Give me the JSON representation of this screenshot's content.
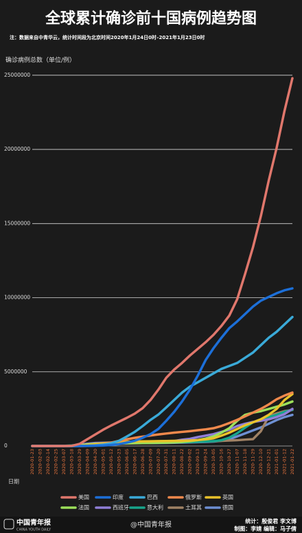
{
  "chart_data": {
    "type": "line",
    "title": "全球累计确诊前十国病例趋势图",
    "subtitle": "注：数据来自中青华云，统计时间段为北京时间2020年1月24日0时–2021年1月23日0时",
    "y_label": "确诊病例总数（单位/例）",
    "x_label": "日期",
    "categories": [
      "2020-01-23",
      "2020-02-03",
      "2020-02-14",
      "2020-02-25",
      "2020-03-07",
      "2020-03-18",
      "2020-03-29",
      "2020-04-09",
      "2020-04-20",
      "2020-05-01",
      "2020-05-12",
      "2020-05-23",
      "2020-06-05",
      "2020-06-17",
      "2020-06-28",
      "2020-07-09",
      "2020-07-20",
      "2020-07-31",
      "2020-08-11",
      "2020-08-22",
      "2020-09-02",
      "2020-09-13",
      "2020-09-24",
      "2020-10-05",
      "2020-10-16",
      "2020-10-27",
      "2020-11-07",
      "2020-11-18",
      "2020-11-29",
      "2020-12-10",
      "2020-12-21",
      "2021-01-01",
      "2021-01-12",
      "2021-01-22"
    ],
    "series": [
      {
        "name": "美国",
        "color": "#e0776c",
        "values": [
          0,
          10,
          15,
          60,
          400,
          9000,
          140000,
          460000,
          780000,
          1100000,
          1380000,
          1640000,
          1900000,
          2180000,
          2550000,
          3100000,
          3800000,
          4600000,
          5150000,
          5600000,
          6100000,
          6550000,
          7000000,
          7500000,
          8100000,
          8800000,
          9900000,
          11600000,
          13400000,
          15500000,
          17900000,
          20100000,
          22600000,
          24800000
        ]
      },
      {
        "name": "印度",
        "color": "#1c6fd8",
        "values": [
          0,
          0,
          3,
          3,
          34,
          150,
          1000,
          6000,
          18000,
          35000,
          70000,
          130000,
          230000,
          350000,
          550000,
          800000,
          1150000,
          1700000,
          2300000,
          3000000,
          3800000,
          4750000,
          5800000,
          6600000,
          7300000,
          7950000,
          8400000,
          8900000,
          9400000,
          9800000,
          10050000,
          10300000,
          10500000,
          10630000
        ]
      },
      {
        "name": "巴西",
        "color": "#3aaad8",
        "values": [
          0,
          0,
          0,
          1,
          19,
          290,
          4300,
          18000,
          40000,
          90000,
          180000,
          350000,
          640000,
          950000,
          1340000,
          1760000,
          2120000,
          2600000,
          3100000,
          3600000,
          4000000,
          4300000,
          4600000,
          4900000,
          5200000,
          5400000,
          5600000,
          5950000,
          6300000,
          6800000,
          7300000,
          7700000,
          8200000,
          8700000
        ]
      },
      {
        "name": "俄罗斯",
        "color": "#f0894c",
        "values": [
          0,
          2,
          2,
          2,
          10,
          150,
          1500,
          10000,
          50000,
          110000,
          230000,
          340000,
          450000,
          550000,
          630000,
          710000,
          780000,
          840000,
          900000,
          950000,
          1000000,
          1060000,
          1120000,
          1200000,
          1350000,
          1550000,
          1760000,
          2000000,
          2250000,
          2500000,
          2800000,
          3150000,
          3400000,
          3600000
        ]
      },
      {
        "name": "英国",
        "color": "#e9c22b",
        "values": [
          0,
          2,
          9,
          13,
          200,
          2600,
          20000,
          65000,
          120000,
          180000,
          225000,
          260000,
          285000,
          300000,
          312000,
          320000,
          328000,
          335000,
          345000,
          355000,
          370000,
          400000,
          450000,
          520000,
          700000,
          900000,
          1150000,
          1400000,
          1600000,
          1800000,
          2100000,
          2500000,
          3100000,
          3500000
        ]
      },
      {
        "name": "法国",
        "color": "#9ce05a",
        "values": [
          3,
          6,
          11,
          12,
          950,
          9000,
          40000,
          110000,
          150000,
          165000,
          175000,
          180000,
          190000,
          195000,
          200000,
          207000,
          212000,
          225000,
          245000,
          270000,
          320000,
          400000,
          500000,
          650000,
          900000,
          1200000,
          1700000,
          2100000,
          2250000,
          2350000,
          2500000,
          2650000,
          2800000,
          3000000
        ]
      },
      {
        "name": "西班牙",
        "color": "#907fd8",
        "values": [
          0,
          1,
          2,
          6,
          500,
          14000,
          80000,
          150000,
          200000,
          215000,
          228000,
          235000,
          240000,
          245000,
          249000,
          253000,
          260000,
          290000,
          330000,
          420000,
          480000,
          600000,
          700000,
          800000,
          950000,
          1100000,
          1350000,
          1500000,
          1620000,
          1700000,
          1800000,
          1950000,
          2150000,
          2500000
        ]
      },
      {
        "name": "意大利",
        "color": "#17a58b",
        "values": [
          0,
          2,
          3,
          320,
          4600,
          36000,
          98000,
          143000,
          182000,
          207000,
          220000,
          229000,
          234000,
          238000,
          240000,
          242000,
          244000,
          247000,
          251000,
          259000,
          270000,
          290000,
          305000,
          330000,
          390000,
          560000,
          860000,
          1240000,
          1600000,
          1770000,
          1950000,
          2100000,
          2300000,
          2440000
        ]
      },
      {
        "name": "土耳其",
        "color": "#a08265",
        "values": [
          0,
          0,
          0,
          0,
          0,
          47,
          10000,
          42000,
          90000,
          120000,
          140000,
          156000,
          170000,
          185000,
          197000,
          208000,
          220000,
          230000,
          243000,
          260000,
          272000,
          290000,
          312000,
          325000,
          345000,
          370000,
          390000,
          430000,
          460000,
          1000000,
          2000000,
          2200000,
          2350000,
          2430000
        ]
      },
      {
        "name": "德国",
        "color": "#6d8fd2",
        "values": [
          0,
          12,
          16,
          18,
          800,
          9000,
          58000,
          113000,
          148000,
          163000,
          172000,
          179000,
          185000,
          189000,
          195000,
          199000,
          203000,
          210000,
          218000,
          232000,
          245000,
          258000,
          280000,
          300000,
          350000,
          460000,
          650000,
          850000,
          1050000,
          1250000,
          1500000,
          1750000,
          1950000,
          2100000
        ]
      }
    ],
    "ylim": [
      0,
      25500000
    ],
    "yticks": [
      0,
      5000000,
      10000000,
      15000000,
      20000000,
      25000000
    ],
    "grid": true
  },
  "footer": {
    "logo": "中国青年报",
    "logo_en": "CHINA YOUTH DAILY",
    "weibo": "@中国青年报",
    "credits": [
      "统计：殷俊君  李文博",
      "制图：李婧  编辑：马子倩"
    ]
  }
}
